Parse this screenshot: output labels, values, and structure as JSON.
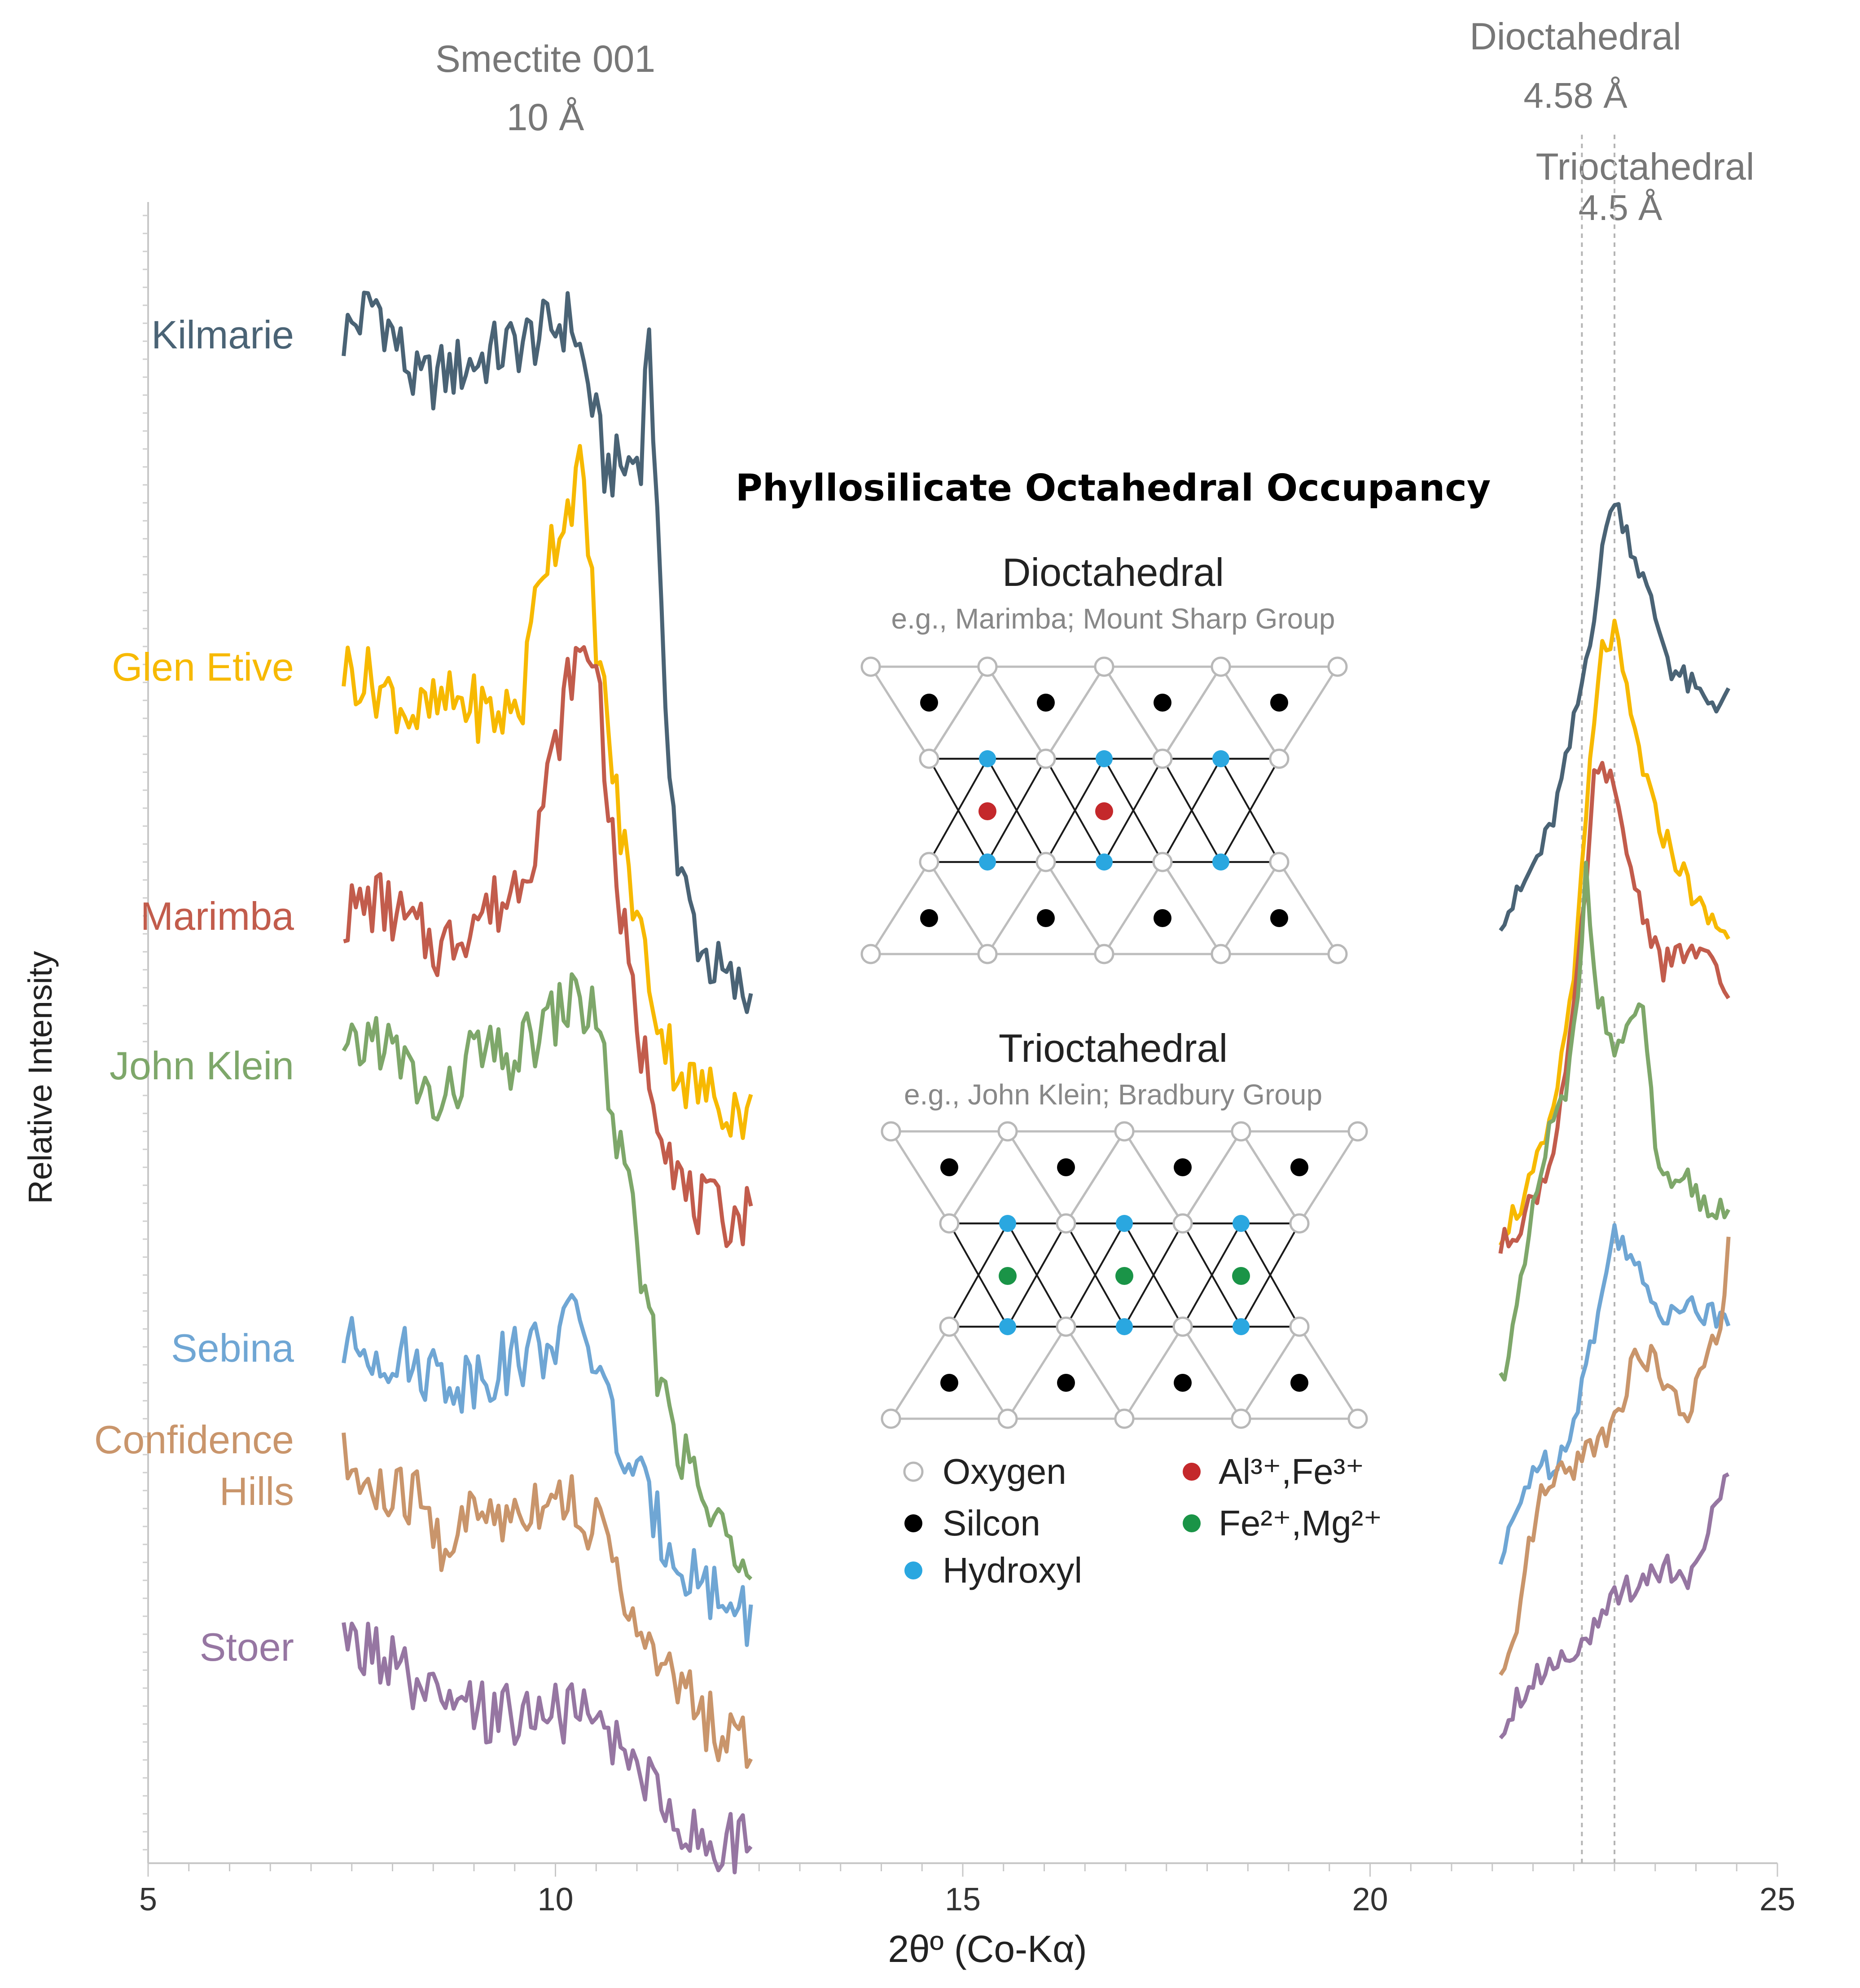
{
  "chart_data": {
    "type": "line",
    "title": "",
    "xlabel": "2θº (Co-Kα)",
    "ylabel": "Relative Intensity",
    "xlim": [
      5,
      25
    ],
    "xticks": [
      5,
      10,
      15,
      20,
      25
    ],
    "ylim": [
      0,
      100
    ],
    "annotations": [
      {
        "text": "Smectite 001",
        "x": 10.0
      },
      {
        "text": "10 Å",
        "x": 10.0
      },
      {
        "text": "Dioctahedral",
        "x": 23.6
      },
      {
        "text": "4.58 Å",
        "x": 23.6
      },
      {
        "text": "Trioctahedral",
        "x": 24.0
      },
      {
        "text": "4.5 Å",
        "x": 24.0
      }
    ],
    "reference_lines": [
      {
        "x": 22.6,
        "label": "4.58 Å"
      },
      {
        "x": 23.0,
        "label": "4.5 Å"
      }
    ],
    "series": [
      {
        "name": "Kilmarie",
        "color": "#4a6375",
        "segment1": {
          "x": [
            7.4,
            7.8,
            8.3,
            8.8,
            9.3,
            9.8,
            10.2,
            10.45,
            10.6,
            10.85,
            11.05,
            11.15,
            11.3,
            11.5,
            11.8,
            12.1,
            12.4
          ],
          "y": [
            92,
            94,
            89,
            90,
            91,
            92,
            93,
            88,
            84,
            84,
            85,
            93,
            74,
            60,
            55,
            53,
            52
          ]
        },
        "segment2": {
          "x": [
            21.6,
            21.8,
            22.0,
            22.2,
            22.4,
            22.6,
            22.8,
            22.95,
            23.1,
            23.3,
            23.5,
            23.7,
            23.9,
            24.1,
            24.4
          ],
          "y": [
            57,
            58,
            60,
            62,
            66,
            71,
            77,
            82,
            81,
            78,
            75,
            72,
            71,
            70,
            70
          ]
        }
      },
      {
        "name": "Glen Etive",
        "color": "#f7b900",
        "segment1": {
          "x": [
            7.4,
            7.8,
            8.3,
            8.8,
            9.3,
            9.6,
            9.8,
            10.1,
            10.3,
            10.5,
            10.8,
            11.0,
            11.3,
            11.6,
            12.0,
            12.4
          ],
          "y": [
            72,
            71,
            69,
            70,
            69,
            70,
            78,
            81,
            84,
            74,
            62,
            57,
            50,
            47,
            46,
            45
          ]
        },
        "segment2": {
          "x": [
            21.6,
            21.9,
            22.2,
            22.4,
            22.55,
            22.7,
            22.85,
            23.0,
            23.2,
            23.5,
            23.8,
            24.1,
            24.4
          ],
          "y": [
            38,
            40,
            44,
            50,
            56,
            66,
            73,
            74,
            69,
            63,
            60,
            57,
            56
          ]
        }
      },
      {
        "name": "Marimba",
        "color": "#c25c4c",
        "segment1": {
          "x": [
            7.4,
            7.8,
            8.3,
            8.6,
            9.0,
            9.4,
            9.7,
            10.0,
            10.2,
            10.5,
            10.7,
            11.0,
            11.3,
            11.6,
            12.0,
            12.4
          ],
          "y": [
            57,
            58,
            56,
            55,
            57,
            58,
            61,
            67,
            72,
            73,
            61,
            50,
            45,
            40,
            39,
            39
          ]
        },
        "segment2": {
          "x": [
            21.6,
            21.9,
            22.2,
            22.45,
            22.6,
            22.75,
            22.9,
            23.1,
            23.3,
            23.6,
            23.9,
            24.2,
            24.4
          ],
          "y": [
            37,
            39,
            42,
            49,
            56,
            65,
            66,
            62,
            58,
            54,
            55,
            54,
            52
          ]
        }
      },
      {
        "name": "John Klein",
        "color": "#7ea76a",
        "segment1": {
          "x": [
            7.4,
            7.8,
            8.3,
            8.6,
            9.0,
            9.4,
            9.8,
            10.2,
            10.5,
            10.7,
            10.9,
            11.2,
            11.6,
            12.0,
            12.4
          ],
          "y": [
            48,
            50,
            47,
            45,
            49,
            48,
            50,
            52,
            51,
            45,
            40,
            31,
            24,
            20,
            19
          ]
        },
        "segment2": {
          "x": [
            21.6,
            21.8,
            22.0,
            22.2,
            22.4,
            22.55,
            22.65,
            22.8,
            23.0,
            23.2,
            23.35,
            23.5,
            23.7,
            23.9,
            24.2,
            24.4
          ],
          "y": [
            29,
            33,
            39,
            44,
            46,
            52,
            60,
            52,
            49,
            50,
            52,
            43,
            40,
            41,
            39,
            40
          ]
        }
      },
      {
        "name": "Sebina",
        "color": "#6fa6d4",
        "segment1": {
          "x": [
            7.4,
            7.8,
            8.3,
            8.8,
            9.3,
            9.8,
            10.1,
            10.3,
            10.5,
            10.8,
            11.0,
            11.3,
            11.6,
            12.0,
            12.4
          ],
          "y": [
            31,
            31,
            30,
            29,
            30,
            31,
            32,
            33,
            30,
            25,
            23,
            20,
            18,
            16,
            15
          ]
        },
        "segment2": {
          "x": [
            21.6,
            21.8,
            22.0,
            22.2,
            22.4,
            22.6,
            22.8,
            23.0,
            23.2,
            23.4,
            23.6,
            23.8,
            24.1,
            24.4
          ],
          "y": [
            18,
            21,
            24,
            24,
            25,
            29,
            33,
            38,
            37,
            34,
            33,
            34,
            33,
            33
          ]
        }
      },
      {
        "name": "Confidence Hills",
        "color": "#c9956b",
        "segment1": {
          "x": [
            7.4,
            7.8,
            8.3,
            8.6,
            9.0,
            9.4,
            9.8,
            10.2,
            10.5,
            10.8,
            11.0,
            11.3,
            11.6,
            12.0,
            12.4
          ],
          "y": [
            24,
            22,
            22,
            19,
            21,
            21,
            22,
            22,
            20,
            18,
            13,
            12,
            10,
            8,
            7
          ]
        },
        "segment2": {
          "x": [
            21.6,
            21.8,
            21.95,
            22.1,
            22.3,
            22.5,
            22.7,
            22.9,
            23.1,
            23.3,
            23.5,
            23.7,
            23.9,
            24.1,
            24.3,
            24.4
          ],
          "y": [
            11,
            13,
            19,
            22,
            23,
            24,
            25,
            26,
            28,
            31,
            30,
            28,
            27,
            30,
            32,
            37
          ]
        }
      },
      {
        "name": "Stoer",
        "color": "#9676a2",
        "segment1": {
          "x": [
            7.4,
            7.7,
            8.0,
            8.3,
            8.8,
            9.3,
            9.8,
            10.2,
            10.6,
            11.0,
            11.3,
            11.6,
            12.0,
            12.4
          ],
          "y": [
            13,
            13,
            12,
            10,
            9,
            9,
            9,
            9,
            8,
            6,
            4,
            2,
            1,
            1
          ]
        },
        "segment2": {
          "x": [
            21.6,
            21.8,
            22.0,
            22.2,
            22.5,
            22.8,
            23.0,
            23.3,
            23.6,
            23.9,
            24.2,
            24.4
          ],
          "y": [
            8,
            10,
            11,
            12,
            13,
            14,
            16,
            17,
            18,
            17,
            21,
            23
          ]
        }
      }
    ]
  },
  "inset": {
    "title": "Phyllosilicate Octahedral Occupancy",
    "diagrams": [
      {
        "heading": "Dioctahedral",
        "subtitle": "e.g., Marimba; Mount Sharp Group",
        "cation": "Al³⁺,Fe³⁺",
        "cation_color": "#c4282b"
      },
      {
        "heading": "Trioctahedral",
        "subtitle": "e.g., John Klein; Bradbury Group",
        "cation": "Fe²⁺,Mg²⁺",
        "cation_color": "#1a9447"
      }
    ],
    "legend": [
      {
        "label": "Oxygen",
        "color": "#ffffff",
        "stroke": "#b8b8b8"
      },
      {
        "label": "Silcon",
        "color": "#000000"
      },
      {
        "label": "Hydroxyl",
        "color": "#2aa7e0"
      },
      {
        "label": "Al³⁺,Fe³⁺",
        "color": "#c4282b"
      },
      {
        "label": "Fe²⁺,Mg²⁺",
        "color": "#1a9447"
      }
    ]
  }
}
